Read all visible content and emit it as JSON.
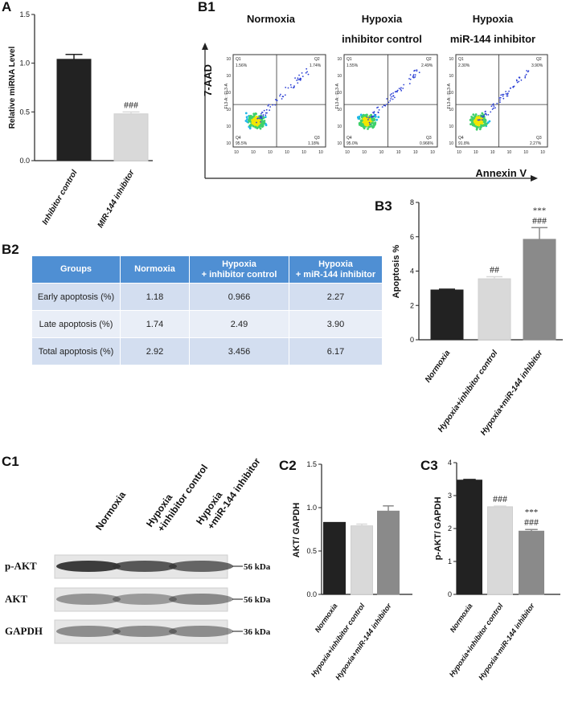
{
  "panels": {
    "A": "A",
    "B1": "B1",
    "B2": "B2",
    "B3": "B3",
    "C1": "C1",
    "C2": "C2",
    "C3": "C3"
  },
  "flow": {
    "y_axis_label": "7-AAD",
    "x_axis_label": "Annexin V",
    "channel_label": "FL3-A:: FL3-A",
    "plots": [
      {
        "title_lines": [
          "Normoxia"
        ],
        "q1": "1.56%",
        "q2": "1.74%",
        "q3": "1.18%",
        "q4": "95.5%",
        "q1_label": "Q1",
        "q2_label": "Q2",
        "q3_label": "Q3",
        "q4_label": "Q4"
      },
      {
        "title_lines": [
          "Hypoxia",
          "inhibitor control"
        ],
        "q1": "1.55%",
        "q2": "2.49%",
        "q3": "0.966%",
        "q4": "95.0%",
        "q1_label": "Q1",
        "q2_label": "Q2",
        "q3_label": "Q3",
        "q4_label": "Q4"
      },
      {
        "title_lines": [
          "Hypoxia",
          "miR-144 inhibitor"
        ],
        "q1": "2.30%",
        "q2": "3.90%",
        "q3": "2.27%",
        "q4": "91.8%",
        "q1_label": "Q1",
        "q2_label": "Q2",
        "q3_label": "Q3",
        "q4_label": "Q4"
      }
    ],
    "x_ticks": [
      "10",
      "10",
      "10",
      "10",
      "10",
      "10"
    ]
  },
  "table": {
    "headers": [
      "Groups",
      "Normoxia",
      "Hypoxia\n+ inhibitor control",
      "Hypoxia\n+ miR-144 inhibitor"
    ],
    "rows": [
      [
        "Early apoptosis (%)",
        "1.18",
        "0.966",
        "2.27"
      ],
      [
        "Late apoptosis (%)",
        "1.74",
        "2.49",
        "3.90"
      ],
      [
        "Total apoptosis (%)",
        "2.92",
        "3.456",
        "6.17"
      ]
    ]
  },
  "western": {
    "lanes": [
      [
        "Normoxia"
      ],
      [
        "Hypoxia",
        "+inhibitor control"
      ],
      [
        "Hypoxia",
        "+miR-144 inhibitor"
      ]
    ],
    "bands": [
      {
        "label": "p-AKT",
        "size": "56 kDa"
      },
      {
        "label": "AKT",
        "size": "56 kDa"
      },
      {
        "label": "GAPDH",
        "size": "36 kDa"
      }
    ]
  },
  "colors": {
    "black": "#222222",
    "light": "#d9d9d9",
    "mid": "#8a8a8a"
  },
  "chart_data": [
    {
      "id": "A",
      "type": "bar",
      "categories": [
        "Inhibitor control",
        "MIR-144 inhibitor"
      ],
      "values": [
        1.04,
        0.48
      ],
      "errors": [
        0.05,
        0.02
      ],
      "colors": [
        "#222222",
        "#d9d9d9"
      ],
      "annotations": [
        "",
        "###"
      ],
      "ylabel": "Relative miRNA Level",
      "ylim": [
        0,
        1.5
      ],
      "yticks": [
        "0.0",
        "0.5",
        "1.0",
        "1.5"
      ]
    },
    {
      "id": "B3",
      "type": "bar",
      "categories": [
        "Normoxia",
        "Hypoxia+inhibitor control",
        "Hypoxia+miR-144 inhibitor"
      ],
      "values": [
        2.9,
        3.55,
        5.85
      ],
      "errors": [
        0.05,
        0.12,
        0.68
      ],
      "colors": [
        "#222222",
        "#d9d9d9",
        "#8a8a8a"
      ],
      "annotations": [
        [],
        [
          "##"
        ],
        [
          "***",
          "###"
        ]
      ],
      "ylabel": "Apoptosis %",
      "ylim": [
        0,
        8
      ],
      "yticks": [
        "0",
        "2",
        "4",
        "6",
        "8"
      ]
    },
    {
      "id": "C2",
      "type": "bar",
      "categories": [
        "Normoxia",
        "Hypoxia+inhibitor control",
        "Hypoxia+miR-144 inhibitor"
      ],
      "values": [
        0.83,
        0.79,
        0.96
      ],
      "errors": [
        0.0,
        0.02,
        0.06
      ],
      "colors": [
        "#222222",
        "#d9d9d9",
        "#8a8a8a"
      ],
      "annotations": [
        [],
        [],
        []
      ],
      "ylabel": "AKT/ GAPDH",
      "ylim": [
        0,
        1.5
      ],
      "yticks": [
        "0.0",
        "0.5",
        "1.0",
        "1.5"
      ]
    },
    {
      "id": "C3",
      "type": "bar",
      "categories": [
        "Normoxia",
        "Hypoxia+inhibitor control",
        "Hypoxia+miR-144 inhibitor"
      ],
      "values": [
        3.47,
        2.66,
        1.92
      ],
      "errors": [
        0.02,
        0.02,
        0.05
      ],
      "colors": [
        "#222222",
        "#d9d9d9",
        "#8a8a8a"
      ],
      "annotations": [
        [],
        [
          "###"
        ],
        [
          "***",
          "###"
        ]
      ],
      "ylabel": "p-AKT/ GAPDH",
      "ylim": [
        0,
        4
      ],
      "yticks": [
        "0",
        "1",
        "2",
        "3",
        "4"
      ]
    }
  ]
}
